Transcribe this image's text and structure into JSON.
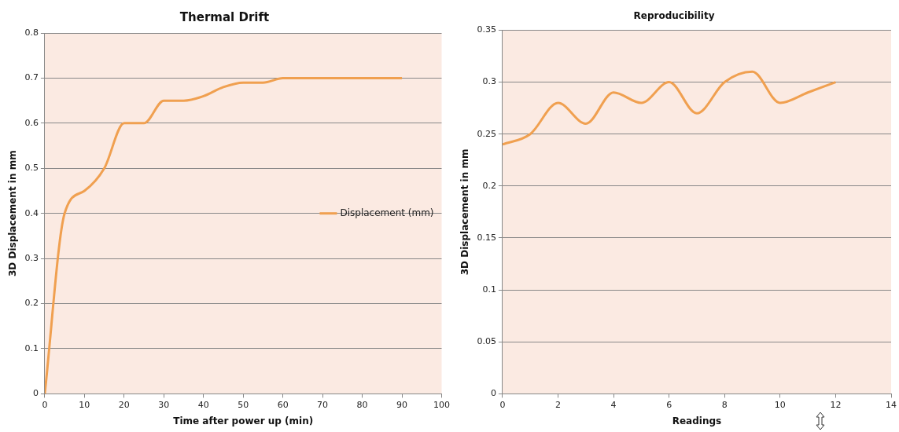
{
  "chart_data": [
    {
      "type": "line",
      "title": "Thermal Drift",
      "xlabel": "Time after power up (min)",
      "ylabel": "3D Displacement in mm",
      "x": [
        0,
        5,
        10,
        15,
        20,
        25,
        30,
        35,
        40,
        45,
        50,
        55,
        60,
        65,
        70,
        75,
        80,
        85,
        90
      ],
      "series": [
        {
          "name": "Displacement (mm)",
          "color": "#f0a050",
          "values": [
            0,
            0.4,
            0.45,
            0.5,
            0.6,
            0.6,
            0.65,
            0.65,
            0.66,
            0.68,
            0.69,
            0.69,
            0.7,
            0.7,
            0.7,
            0.7,
            0.7,
            0.7,
            0.7
          ]
        }
      ],
      "xlim": [
        0,
        100
      ],
      "xticks": [
        0,
        10,
        20,
        30,
        40,
        50,
        60,
        70,
        80,
        90,
        100
      ],
      "ylim": [
        0,
        0.8
      ],
      "yticks": [
        0,
        0.1,
        0.2,
        0.3,
        0.4,
        0.5,
        0.6,
        0.7,
        0.8
      ],
      "grid": "y",
      "legend": "right"
    },
    {
      "type": "line",
      "title": "Reproducibility",
      "xlabel": "Readings",
      "ylabel": "3D Displacement in mm",
      "x": [
        0,
        1,
        2,
        3,
        4,
        5,
        6,
        7,
        8,
        9,
        10,
        11,
        12
      ],
      "series": [
        {
          "color": "#f0a050",
          "values": [
            0.24,
            0.25,
            0.28,
            0.26,
            0.29,
            0.28,
            0.3,
            0.27,
            0.3,
            0.31,
            0.28,
            0.29,
            0.3
          ]
        }
      ],
      "xlim": [
        0,
        14
      ],
      "xticks": [
        0,
        2,
        4,
        6,
        8,
        10,
        12,
        14
      ],
      "ylim": [
        0,
        0.35
      ],
      "yticks": [
        0,
        0.05,
        0.1,
        0.15,
        0.2,
        0.25,
        0.3,
        0.35
      ],
      "grid": "y"
    }
  ]
}
